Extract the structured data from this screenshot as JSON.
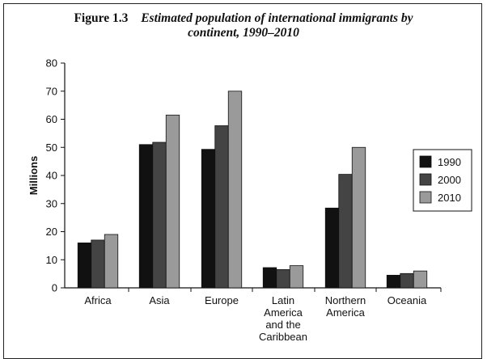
{
  "figure": {
    "label": "Figure 1.3",
    "title_line1": "Estimated population of international immigrants by",
    "title_line2": "continent, 1990–2010"
  },
  "chart_data": {
    "type": "bar",
    "title": "Estimated population of international immigrants by continent, 1990–2010",
    "xlabel": "",
    "ylabel": "Millions",
    "ylim": [
      0,
      80
    ],
    "yticks": [
      0,
      10,
      20,
      30,
      40,
      50,
      60,
      70,
      80
    ],
    "grid": false,
    "legend_position": "right",
    "categories": [
      [
        "Africa"
      ],
      [
        "Asia"
      ],
      [
        "Europe"
      ],
      [
        "Latin",
        "America",
        "and the",
        "Caribbean"
      ],
      [
        "Northern",
        "America"
      ],
      [
        "Oceania"
      ]
    ],
    "series": [
      {
        "name": "1990",
        "color": "#111111",
        "values": [
          16,
          51,
          49.3,
          7.2,
          28.4,
          4.5
        ]
      },
      {
        "name": "2000",
        "color": "#444444",
        "values": [
          17,
          51.8,
          57.7,
          6.5,
          40.4,
          5.1
        ]
      },
      {
        "name": "2010",
        "color": "#9a9a9a",
        "values": [
          19,
          61.5,
          70,
          7.9,
          50,
          6
        ]
      }
    ]
  }
}
